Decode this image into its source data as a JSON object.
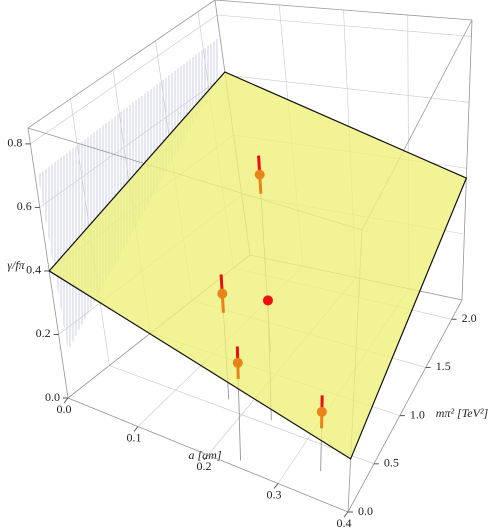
{
  "chart_data": {
    "type": "scatter3d",
    "xlabel": "a [am]",
    "ylabel": "mπ² [TeV²]",
    "zlabel": "γ/fπ",
    "xlim": [
      0,
      0.4
    ],
    "ylim": [
      0,
      2.2
    ],
    "zlim": [
      0,
      0.85
    ],
    "xticks": [
      {
        "value": 0,
        "label": "0.0"
      },
      0.1,
      0.2,
      0.3,
      0.4
    ],
    "yticks": [
      {
        "value": 0,
        "label": "0.0"
      },
      0.5,
      {
        "value": 1,
        "label": "1.0"
      },
      1.5,
      {
        "value": 2,
        "label": "2.0"
      }
    ],
    "zticks": [
      {
        "value": 0,
        "label": "0.0"
      },
      0.2,
      0.4,
      0.6,
      0.8
    ],
    "grid": true,
    "plane": {
      "color": "#eef07a",
      "z_corners": [
        0.4,
        0.16,
        0.37,
        0.61
      ]
    },
    "series": [
      {
        "color": "#e8841a",
        "err_color": "#e81010",
        "x": [
          0.17,
          0.17,
          0.24,
          0.34
        ],
        "y": [
          1.2,
          0.6,
          0.07,
          0.26
        ],
        "z": [
          0.56,
          0.33,
          0.3,
          0.18
        ],
        "err": [
          0.06,
          0.06,
          0.05,
          0.05
        ]
      },
      {
        "color": "#ee1010",
        "x": [
          0.24
        ],
        "y": [
          0.55
        ],
        "z": [
          0.37
        ]
      }
    ]
  }
}
